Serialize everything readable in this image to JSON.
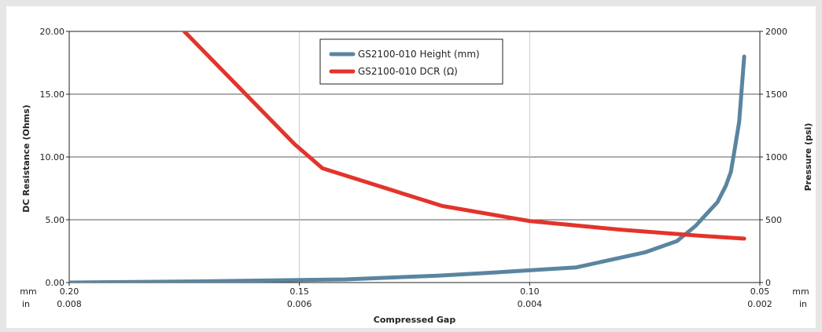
{
  "chart_data": {
    "type": "line",
    "xlabel": "Compressed Gap",
    "ylabel": "DC Resistance (Ohms)",
    "y2label": "Pressure (psi)",
    "xlim": [
      0.2,
      0.05
    ],
    "ylim": [
      0,
      20
    ],
    "y2lim": [
      0,
      2000
    ],
    "x_unit_mm": "mm",
    "x_unit_in": "in",
    "x_ticks_mm": [
      "0.20",
      "0.15",
      "0.10",
      "0.05"
    ],
    "x_ticks_in": [
      "0.008",
      "0.006",
      "0.004",
      "0.002"
    ],
    "x_tick_values": [
      0.2,
      0.15,
      0.1,
      0.05
    ],
    "y_ticks": [
      "0.00",
      "5.00",
      "10.00",
      "15.00",
      "20.00"
    ],
    "y_tick_values": [
      0,
      5,
      10,
      15,
      20
    ],
    "y2_ticks": [
      "0",
      "500",
      "1000",
      "1500",
      "2000"
    ],
    "y2_tick_values": [
      0,
      500,
      1000,
      1500,
      2000
    ],
    "vertical_gridlines_at": [
      0.15,
      0.1
    ],
    "legend_position": "top-center",
    "series": [
      {
        "name": "GS2100-010 Height (mm)",
        "color": "#5a85a0",
        "axis": "right",
        "x": [
          0.2,
          0.17,
          0.14,
          0.12,
          0.11,
          0.09,
          0.075,
          0.068,
          0.064,
          0.062,
          0.0592,
          0.0574,
          0.0563,
          0.0556,
          0.0545,
          0.0534
        ],
        "y": [
          0,
          10,
          25,
          55,
          75,
          120,
          240,
          330,
          450,
          530,
          640,
          770,
          880,
          1030,
          1280,
          1800
        ]
      },
      {
        "name": "GS2100-010 DCR (Ω)",
        "color": "#e3342b",
        "axis": "left",
        "x": [
          0.175,
          0.151,
          0.145,
          0.119,
          0.1,
          0.08,
          0.062,
          0.0534
        ],
        "y": [
          20,
          11,
          9.1,
          6.1,
          4.9,
          4.2,
          3.7,
          3.5
        ]
      }
    ]
  }
}
